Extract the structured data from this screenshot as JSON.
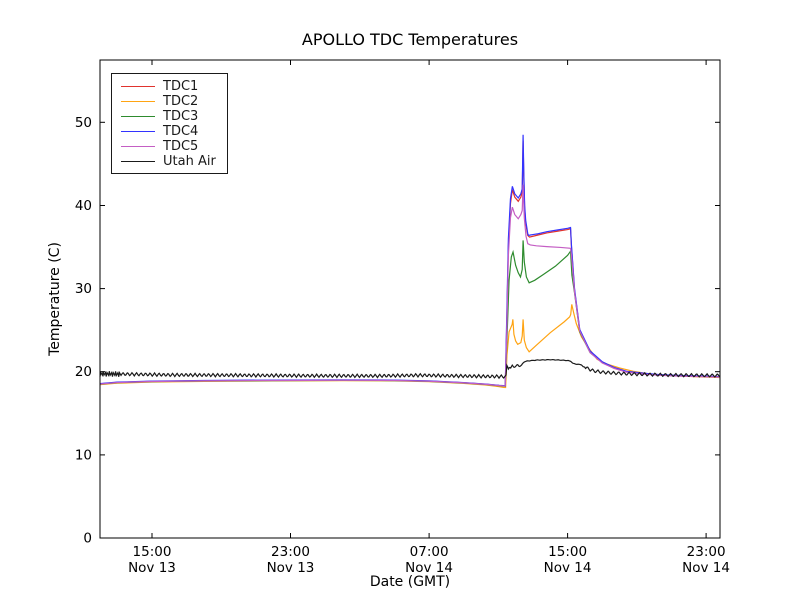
{
  "figure": {
    "background": "#ffffff",
    "axis_color": "#000000"
  },
  "chart_data": {
    "type": "line",
    "title": "APOLLO TDC Temperatures",
    "xlabel": "Date (GMT)",
    "ylabel": "Temperature (C)",
    "grid": false,
    "legend_position": "upper left",
    "ylim": [
      0,
      57.5
    ],
    "yticks": [
      0,
      10,
      20,
      30,
      40,
      50
    ],
    "x_unit": "hours since Nov 13 12:00 GMT",
    "xlim_hours": [
      0,
      35.8
    ],
    "xticks": [
      {
        "t": 3,
        "time": "15:00",
        "date": "Nov 13"
      },
      {
        "t": 11,
        "time": "23:00",
        "date": "Nov 13"
      },
      {
        "t": 19,
        "time": "07:00",
        "date": "Nov 14"
      },
      {
        "t": 27,
        "time": "15:00",
        "date": "Nov 14"
      },
      {
        "t": 35,
        "time": "23:00",
        "date": "Nov 14"
      }
    ],
    "series": [
      {
        "name": "TDC1",
        "color": "#e0332e",
        "points": [
          [
            0,
            18.55
          ],
          [
            1,
            18.72
          ],
          [
            3,
            18.85
          ],
          [
            6,
            18.92
          ],
          [
            10,
            18.97
          ],
          [
            14,
            19.0
          ],
          [
            17,
            18.97
          ],
          [
            19,
            18.88
          ],
          [
            21,
            18.68
          ],
          [
            22.3,
            18.5
          ],
          [
            23.05,
            18.35
          ],
          [
            23.4,
            18.3
          ],
          [
            23.48,
            25.0
          ],
          [
            23.58,
            35.0
          ],
          [
            23.7,
            40.2
          ],
          [
            23.81,
            41.9
          ],
          [
            23.95,
            41.0
          ],
          [
            24.15,
            40.5
          ],
          [
            24.3,
            41.0
          ],
          [
            24.38,
            41.6
          ],
          [
            24.43,
            47.8
          ],
          [
            24.47,
            43.5
          ],
          [
            24.52,
            39.6
          ],
          [
            24.58,
            37.9
          ],
          [
            24.65,
            37.0
          ],
          [
            24.7,
            36.4
          ],
          [
            24.8,
            36.2
          ],
          [
            25.0,
            36.3
          ],
          [
            25.3,
            36.45
          ],
          [
            25.8,
            36.7
          ],
          [
            26.4,
            36.9
          ],
          [
            27.0,
            37.1
          ],
          [
            27.17,
            37.2
          ],
          [
            27.22,
            35.1
          ],
          [
            27.4,
            29.8
          ],
          [
            27.7,
            25.0
          ],
          [
            28.3,
            22.4
          ],
          [
            29.0,
            21.1
          ],
          [
            29.7,
            20.4
          ],
          [
            30.4,
            20.0
          ],
          [
            31.5,
            19.75
          ],
          [
            32.3,
            19.6
          ],
          [
            33.5,
            19.5
          ],
          [
            35.0,
            19.42
          ],
          [
            35.8,
            19.38
          ]
        ]
      },
      {
        "name": "TDC2",
        "color": "#ffa413",
        "points": [
          [
            0,
            18.45
          ],
          [
            1,
            18.62
          ],
          [
            3,
            18.76
          ],
          [
            6,
            18.84
          ],
          [
            10,
            18.9
          ],
          [
            14,
            18.93
          ],
          [
            17,
            18.9
          ],
          [
            19,
            18.8
          ],
          [
            21,
            18.6
          ],
          [
            22.3,
            18.4
          ],
          [
            23.0,
            18.22
          ],
          [
            23.3,
            18.12
          ],
          [
            23.42,
            18.1
          ],
          [
            23.5,
            22.0
          ],
          [
            23.62,
            24.8
          ],
          [
            23.72,
            25.3
          ],
          [
            23.8,
            25.7
          ],
          [
            23.84,
            26.3
          ],
          [
            23.9,
            24.5
          ],
          [
            24.0,
            23.7
          ],
          [
            24.12,
            23.3
          ],
          [
            24.3,
            23.5
          ],
          [
            24.38,
            24.3
          ],
          [
            24.43,
            26.3
          ],
          [
            24.5,
            23.8
          ],
          [
            24.62,
            22.9
          ],
          [
            24.78,
            22.4
          ],
          [
            25.2,
            23.2
          ],
          [
            26.0,
            24.7
          ],
          [
            26.8,
            26.0
          ],
          [
            27.12,
            26.6
          ],
          [
            27.18,
            26.9
          ],
          [
            27.24,
            28.1
          ],
          [
            27.35,
            27.1
          ],
          [
            27.5,
            25.8
          ],
          [
            27.8,
            24.2
          ],
          [
            28.2,
            22.9
          ],
          [
            28.7,
            21.5
          ],
          [
            29.3,
            20.9
          ],
          [
            30.0,
            20.45
          ],
          [
            30.8,
            20.05
          ],
          [
            31.8,
            19.72
          ],
          [
            33.0,
            19.55
          ],
          [
            34.5,
            19.4
          ],
          [
            35.8,
            19.3
          ]
        ]
      },
      {
        "name": "TDC3",
        "color": "#2e8b2e",
        "points": [
          [
            0,
            18.5
          ],
          [
            1,
            18.68
          ],
          [
            3,
            18.8
          ],
          [
            6,
            18.88
          ],
          [
            10,
            18.93
          ],
          [
            14,
            18.96
          ],
          [
            17,
            18.93
          ],
          [
            19,
            18.84
          ],
          [
            21,
            18.64
          ],
          [
            22.3,
            18.46
          ],
          [
            23.05,
            18.31
          ],
          [
            23.4,
            18.26
          ],
          [
            23.5,
            24.0
          ],
          [
            23.62,
            31.0
          ],
          [
            23.75,
            33.8
          ],
          [
            23.85,
            34.4
          ],
          [
            24.0,
            32.8
          ],
          [
            24.15,
            31.9
          ],
          [
            24.28,
            31.4
          ],
          [
            24.38,
            32.3
          ],
          [
            24.43,
            35.8
          ],
          [
            24.5,
            33.2
          ],
          [
            24.62,
            31.4
          ],
          [
            24.78,
            30.7
          ],
          [
            25.1,
            31.0
          ],
          [
            25.6,
            31.7
          ],
          [
            26.3,
            32.7
          ],
          [
            27.0,
            34.0
          ],
          [
            27.17,
            34.5
          ],
          [
            27.25,
            31.6
          ],
          [
            27.4,
            29.5
          ],
          [
            27.7,
            24.8
          ],
          [
            28.3,
            22.3
          ],
          [
            29.0,
            21.1
          ],
          [
            29.7,
            20.45
          ],
          [
            30.4,
            19.98
          ],
          [
            31.5,
            19.72
          ],
          [
            32.3,
            19.6
          ],
          [
            33.5,
            19.5
          ],
          [
            35.0,
            19.42
          ],
          [
            35.8,
            19.37
          ]
        ]
      },
      {
        "name": "TDC4",
        "color": "#3333ff",
        "points": [
          [
            0,
            18.58
          ],
          [
            1,
            18.75
          ],
          [
            3,
            18.88
          ],
          [
            6,
            18.95
          ],
          [
            10,
            19.0
          ],
          [
            14,
            19.03
          ],
          [
            17,
            19.0
          ],
          [
            19,
            18.9
          ],
          [
            21,
            18.7
          ],
          [
            22.3,
            18.52
          ],
          [
            23.05,
            18.37
          ],
          [
            23.4,
            18.32
          ],
          [
            23.48,
            26.0
          ],
          [
            23.58,
            36.0
          ],
          [
            23.7,
            40.8
          ],
          [
            23.81,
            42.3
          ],
          [
            23.95,
            41.4
          ],
          [
            24.15,
            40.9
          ],
          [
            24.3,
            41.4
          ],
          [
            24.38,
            42.0
          ],
          [
            24.43,
            48.5
          ],
          [
            24.47,
            44.0
          ],
          [
            24.52,
            40.0
          ],
          [
            24.58,
            38.2
          ],
          [
            24.65,
            37.3
          ],
          [
            24.7,
            36.6
          ],
          [
            24.75,
            36.4
          ],
          [
            24.85,
            36.45
          ],
          [
            25.0,
            36.5
          ],
          [
            25.3,
            36.6
          ],
          [
            25.8,
            36.85
          ],
          [
            26.4,
            37.05
          ],
          [
            27.0,
            37.25
          ],
          [
            27.17,
            37.35
          ],
          [
            27.22,
            35.3
          ],
          [
            27.4,
            30.0
          ],
          [
            27.7,
            25.1
          ],
          [
            28.3,
            22.5
          ],
          [
            29.0,
            21.2
          ],
          [
            29.7,
            20.5
          ],
          [
            30.4,
            20.05
          ],
          [
            31.5,
            19.8
          ],
          [
            32.3,
            19.65
          ],
          [
            33.5,
            19.55
          ],
          [
            35.0,
            19.47
          ],
          [
            35.8,
            19.42
          ]
        ]
      },
      {
        "name": "TDC5",
        "color": "#c45ec4",
        "points": [
          [
            0,
            18.52
          ],
          [
            1,
            18.7
          ],
          [
            3,
            18.83
          ],
          [
            6,
            18.9
          ],
          [
            10,
            18.95
          ],
          [
            14,
            18.98
          ],
          [
            17,
            18.95
          ],
          [
            19,
            18.86
          ],
          [
            21,
            18.66
          ],
          [
            22.3,
            18.48
          ],
          [
            23.05,
            18.33
          ],
          [
            23.4,
            18.28
          ],
          [
            23.48,
            24.0
          ],
          [
            23.58,
            34.0
          ],
          [
            23.7,
            38.5
          ],
          [
            23.81,
            39.8
          ],
          [
            23.95,
            38.9
          ],
          [
            24.15,
            38.4
          ],
          [
            24.3,
            38.9
          ],
          [
            24.38,
            39.4
          ],
          [
            24.43,
            42.5
          ],
          [
            24.5,
            38.5
          ],
          [
            24.6,
            36.3
          ],
          [
            24.7,
            35.4
          ],
          [
            24.85,
            35.25
          ],
          [
            25.2,
            35.15
          ],
          [
            25.8,
            35.05
          ],
          [
            26.6,
            34.95
          ],
          [
            27.17,
            34.85
          ],
          [
            27.22,
            34.1
          ],
          [
            27.4,
            29.6
          ],
          [
            27.7,
            24.9
          ],
          [
            28.3,
            22.3
          ],
          [
            29.0,
            21.05
          ],
          [
            29.7,
            20.4
          ],
          [
            30.4,
            19.95
          ],
          [
            31.5,
            19.7
          ],
          [
            32.3,
            19.57
          ],
          [
            33.5,
            19.47
          ],
          [
            35.0,
            19.4
          ],
          [
            35.8,
            19.35
          ]
        ]
      },
      {
        "name": "Utah Air",
        "color": "#1a1a1a",
        "points": [
          [
            0,
            19.75
          ],
          [
            2,
            19.7
          ],
          [
            4,
            19.62
          ],
          [
            8,
            19.58
          ],
          [
            12,
            19.52
          ],
          [
            16,
            19.5
          ],
          [
            18.5,
            19.58
          ],
          [
            20.5,
            19.5
          ],
          [
            22,
            19.45
          ],
          [
            23.35,
            19.42
          ],
          [
            23.45,
            19.6
          ],
          [
            23.5,
            21.0
          ],
          [
            23.56,
            20.25
          ],
          [
            23.65,
            20.6
          ],
          [
            23.72,
            20.45
          ],
          [
            23.8,
            20.75
          ],
          [
            23.9,
            20.55
          ],
          [
            24.0,
            20.65
          ],
          [
            24.1,
            20.85
          ],
          [
            24.2,
            20.65
          ],
          [
            24.35,
            20.8
          ],
          [
            24.5,
            21.2
          ],
          [
            24.7,
            21.3
          ],
          [
            25.2,
            21.4
          ],
          [
            26.0,
            21.45
          ],
          [
            26.6,
            21.4
          ],
          [
            27.0,
            21.35
          ],
          [
            27.2,
            21.25
          ],
          [
            27.3,
            21.0
          ],
          [
            27.55,
            20.9
          ],
          [
            27.8,
            20.85
          ],
          [
            27.9,
            20.6
          ],
          [
            28.1,
            20.45
          ],
          [
            28.5,
            20.1
          ],
          [
            29.0,
            19.95
          ],
          [
            29.6,
            19.85
          ],
          [
            30.5,
            19.75
          ],
          [
            31.5,
            19.68
          ],
          [
            33.0,
            19.6
          ],
          [
            35.8,
            19.55
          ]
        ],
        "noise": [
          {
            "t0": 0,
            "t1": 1.2,
            "amp": 0.32,
            "period": 0.12
          },
          {
            "t0": 1.2,
            "t1": 23.35,
            "amp": 0.2,
            "period": 0.26
          },
          {
            "t0": 23.35,
            "t1": 24.5,
            "amp": 0.06,
            "period": 0.3
          },
          {
            "t0": 24.5,
            "t1": 28.0,
            "amp": 0.03,
            "period": 0.3
          },
          {
            "t0": 28.0,
            "t1": 35.8,
            "amp": 0.2,
            "period": 0.3
          }
        ]
      }
    ]
  }
}
